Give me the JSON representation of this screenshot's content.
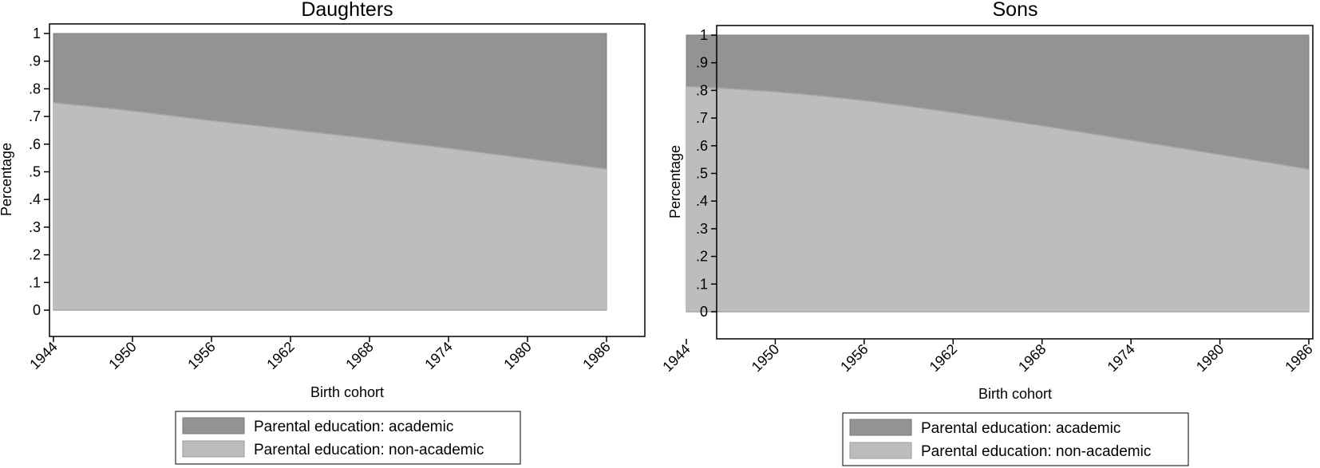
{
  "colors": {
    "academic": "#939393",
    "non_academic": "#bdbdbd",
    "frame": "#000000",
    "plot_background": "#ffffff"
  },
  "chart_data": [
    {
      "type": "area",
      "stacked": true,
      "title": "Daughters",
      "xlabel": "Birth cohort",
      "ylabel": "Percentage",
      "x_ticks": [
        1944,
        1950,
        1956,
        1962,
        1968,
        1974,
        1980,
        1986
      ],
      "x_tick_labels": [
        "1944",
        "1950",
        "1956",
        "1962",
        "1968",
        "1974",
        "1980",
        "1986"
      ],
      "y_ticks": [
        0,
        0.1,
        0.2,
        0.3,
        0.4,
        0.5,
        0.6,
        0.7,
        0.8,
        0.9,
        1
      ],
      "y_tick_labels": [
        "0",
        ".1",
        ".2",
        ".3",
        ".4",
        ".5",
        ".6",
        ".7",
        ".8",
        ".9",
        "1"
      ],
      "xlim": [
        1944,
        1986
      ],
      "ylim": [
        0,
        1
      ],
      "grid": false,
      "legend_position": "bottom",
      "x": [
        1944,
        1950,
        1956,
        1962,
        1968,
        1974,
        1980,
        1986
      ],
      "series": [
        {
          "name": "Parental education: non-academic",
          "values": [
            0.75,
            0.72,
            0.685,
            0.653,
            0.62,
            0.585,
            0.548,
            0.51
          ]
        },
        {
          "name": "Parental education: academic",
          "values": [
            0.25,
            0.28,
            0.315,
            0.347,
            0.38,
            0.415,
            0.452,
            0.49
          ]
        }
      ]
    },
    {
      "type": "area",
      "stacked": true,
      "title": "Sons",
      "xlabel": "Birth cohort",
      "ylabel": "Percentage",
      "x_ticks": [
        1944,
        1950,
        1956,
        1962,
        1968,
        1974,
        1980,
        1986
      ],
      "x_tick_labels": [
        "1944",
        "1950",
        "1956",
        "1962",
        "1968",
        "1974",
        "1980",
        "1986"
      ],
      "y_ticks": [
        0,
        0.1,
        0.2,
        0.3,
        0.4,
        0.5,
        0.6,
        0.7,
        0.8,
        0.9,
        1
      ],
      "y_tick_labels": [
        "0",
        ".1",
        ".2",
        ".3",
        ".4",
        ".5",
        ".6",
        ".7",
        ".8",
        ".9",
        "1"
      ],
      "xlim": [
        1944,
        1986
      ],
      "ylim": [
        0,
        1
      ],
      "grid": false,
      "legend_position": "bottom",
      "x": [
        1944,
        1950,
        1956,
        1962,
        1968,
        1974,
        1980,
        1986
      ],
      "series": [
        {
          "name": "Parental education: non-academic",
          "values": [
            0.815,
            0.795,
            0.763,
            0.72,
            0.672,
            0.62,
            0.568,
            0.515
          ]
        },
        {
          "name": "Parental education: academic",
          "values": [
            0.185,
            0.205,
            0.237,
            0.28,
            0.328,
            0.38,
            0.432,
            0.485
          ]
        }
      ]
    }
  ]
}
